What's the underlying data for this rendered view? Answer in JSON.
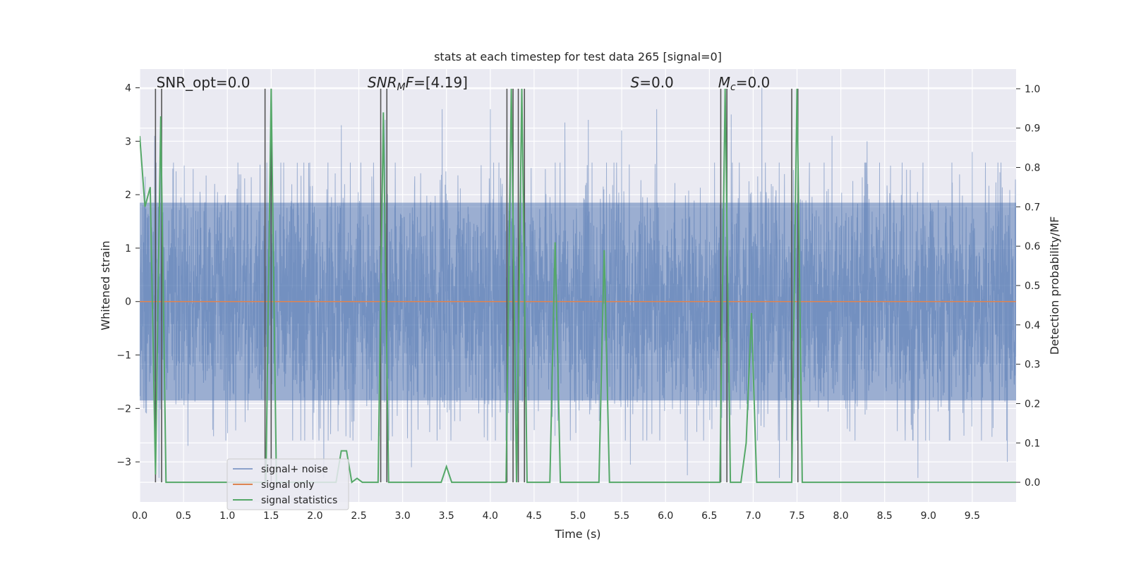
{
  "chart_data": {
    "type": "line",
    "title": "stats at each timestep for test data 265 [signal=0]",
    "xlabel": "Time (s)",
    "ylabel": "Whitened strain",
    "ylabel_right": "Detection probability/MF",
    "xlim": [
      0.0,
      10.0
    ],
    "ylim": [
      -3.75,
      4.35
    ],
    "ylim_right": [
      -0.05,
      1.05
    ],
    "x_ticks": [
      "0.0",
      "0.5",
      "1.0",
      "1.5",
      "2.0",
      "2.5",
      "3.0",
      "3.5",
      "4.0",
      "4.5",
      "5.0",
      "5.5",
      "6.0",
      "6.5",
      "7.0",
      "7.5",
      "8.0",
      "8.5",
      "9.0",
      "9.5"
    ],
    "x_tick_values": [
      0.0,
      0.5,
      1.0,
      1.5,
      2.0,
      2.5,
      3.0,
      3.5,
      4.0,
      4.5,
      5.0,
      5.5,
      6.0,
      6.5,
      7.0,
      7.5,
      8.0,
      8.5,
      9.0,
      9.5
    ],
    "y_ticks": [
      "−3",
      "−2",
      "−1",
      "0",
      "1",
      "2",
      "3",
      "4"
    ],
    "y_tick_values": [
      -3,
      -2,
      -1,
      0,
      1,
      2,
      3,
      4
    ],
    "y_ticks_right": [
      "0.0",
      "0.1",
      "0.2",
      "0.3",
      "0.4",
      "0.5",
      "0.6",
      "0.7",
      "0.8",
      "0.9",
      "1.0"
    ],
    "y_tick_values_right": [
      0.0,
      0.1,
      0.2,
      0.3,
      0.4,
      0.5,
      0.6,
      0.7,
      0.8,
      0.9,
      1.0
    ],
    "grid": true,
    "legend_placement": "lower-left",
    "annotations": [
      {
        "parts": [
          {
            "text": "SNR_opt=0.0",
            "italic": false
          }
        ],
        "x": 0.19
      },
      {
        "parts": [
          {
            "text": "SNR",
            "italic": true
          },
          {
            "text": "M",
            "italic": true,
            "sub": true
          },
          {
            "text": "F",
            "italic": true
          },
          {
            "text": "=[4.19]",
            "italic": false
          }
        ],
        "x": 2.6
      },
      {
        "parts": [
          {
            "text": "S",
            "italic": true
          },
          {
            "text": "=0.0",
            "italic": false
          }
        ],
        "x": 5.6
      },
      {
        "parts": [
          {
            "text": "M",
            "italic": true
          },
          {
            "text": "c",
            "italic": true,
            "sub": true
          },
          {
            "text": "=0.0",
            "italic": false
          }
        ],
        "x": 6.6
      }
    ],
    "series": [
      {
        "name": "signal+ noise",
        "color": "#4c72b0",
        "axis": "left",
        "style": "noise",
        "std": 1.1,
        "band": [
          -1.85,
          1.85
        ],
        "extremes": [
          {
            "x": 0.17,
            "y": 3.1
          },
          {
            "x": 0.22,
            "y": -3.3
          },
          {
            "x": 0.55,
            "y": -2.7
          },
          {
            "x": 1.45,
            "y": 2.6
          },
          {
            "x": 1.5,
            "y": -3.1
          },
          {
            "x": 2.1,
            "y": -3.3
          },
          {
            "x": 2.3,
            "y": 3.3
          },
          {
            "x": 2.8,
            "y": 3.4
          },
          {
            "x": 3.1,
            "y": -3.1
          },
          {
            "x": 3.45,
            "y": 3.6
          },
          {
            "x": 4.0,
            "y": 3.6
          },
          {
            "x": 4.35,
            "y": 2.8
          },
          {
            "x": 4.85,
            "y": 3.35
          },
          {
            "x": 5.12,
            "y": 3.4
          },
          {
            "x": 5.5,
            "y": 3.2
          },
          {
            "x": 5.6,
            "y": -3.05
          },
          {
            "x": 5.9,
            "y": 3.6
          },
          {
            "x": 6.25,
            "y": -3.25
          },
          {
            "x": 6.75,
            "y": 3.5
          },
          {
            "x": 7.1,
            "y": 4.0
          },
          {
            "x": 7.3,
            "y": -3.3
          },
          {
            "x": 7.9,
            "y": 3.1
          },
          {
            "x": 8.3,
            "y": 3.0
          },
          {
            "x": 8.88,
            "y": -3.3
          },
          {
            "x": 9.5,
            "y": 2.8
          },
          {
            "x": 9.9,
            "y": -3.0
          }
        ]
      },
      {
        "name": "signal only",
        "color": "#dd8452",
        "axis": "left",
        "x": [
          0.0,
          10.0
        ],
        "values": [
          0.0,
          0.0
        ]
      },
      {
        "name": "signal statistics",
        "color": "#55a868",
        "axis": "right",
        "x": [
          0.0,
          0.06,
          0.12,
          0.18,
          0.24,
          0.3,
          1.4,
          1.44,
          1.5,
          1.56,
          2.18,
          2.24,
          2.3,
          2.36,
          2.42,
          2.48,
          2.54,
          2.6,
          2.66,
          2.72,
          2.78,
          2.84,
          3.44,
          3.5,
          3.56,
          4.18,
          4.24,
          4.3,
          4.36,
          4.42,
          4.48,
          4.68,
          4.74,
          4.8,
          5.24,
          5.3,
          5.36,
          6.62,
          6.68,
          6.74,
          6.8,
          6.86,
          6.92,
          6.98,
          7.04,
          7.1,
          7.44,
          7.5,
          7.56,
          10.0
        ],
        "values": [
          0.88,
          0.7,
          0.75,
          0.02,
          0.93,
          0.0,
          0.0,
          0.0,
          1.0,
          0.0,
          0.0,
          0.0,
          0.08,
          0.08,
          0.0,
          0.01,
          0.0,
          0.0,
          0.0,
          0.0,
          0.94,
          0.0,
          0.0,
          0.04,
          0.0,
          0.0,
          1.0,
          0.0,
          1.0,
          0.0,
          0.0,
          0.0,
          0.61,
          0.0,
          0.0,
          0.59,
          0.0,
          0.0,
          1.0,
          0.0,
          0.0,
          0.0,
          0.1,
          0.43,
          0.0,
          0.0,
          0.0,
          1.0,
          0.0,
          0.0
        ]
      }
    ],
    "vlines": [
      0.18,
      0.25,
      1.43,
      1.5,
      2.75,
      2.82,
      4.19,
      4.26,
      4.32,
      4.39,
      6.63,
      6.7,
      7.44,
      7.51
    ],
    "vline_color": "#555555",
    "vline_range_right": [
      0.0,
      1.0
    ]
  }
}
